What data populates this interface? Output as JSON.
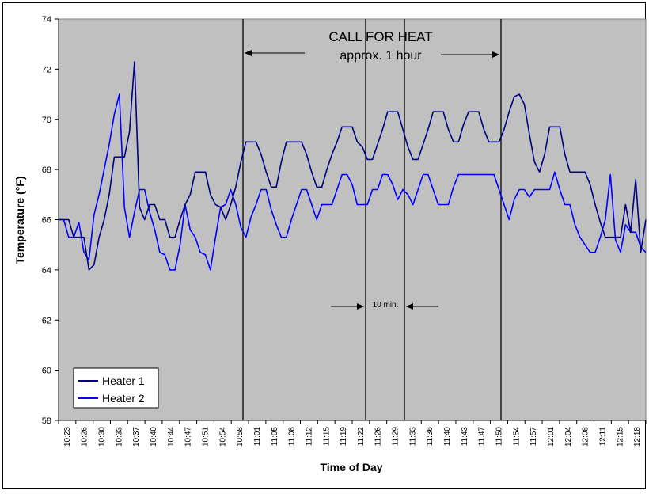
{
  "chart_data": {
    "type": "line",
    "xlabel": "Time of Day",
    "ylabel": "Temperature (°F)",
    "ylim": [
      58,
      74
    ],
    "yticks": [
      58,
      60,
      62,
      64,
      66,
      68,
      70,
      72,
      74
    ],
    "grid": false,
    "legend_position": "bottom-left",
    "x_labels": [
      "10:23",
      "10:26",
      "10:30",
      "10:33",
      "10:37",
      "10:40",
      "10:44",
      "10:47",
      "10:51",
      "10:54",
      "10:58",
      "11:01",
      "11:05",
      "11:08",
      "11:12",
      "11:15",
      "11:19",
      "11:22",
      "11:26",
      "11:29",
      "11:33",
      "11:36",
      "11:40",
      "11:43",
      "11:47",
      "11:50",
      "11:54",
      "11:57",
      "12:01",
      "12:04",
      "12:08",
      "12:11",
      "12:15",
      "12:18"
    ],
    "x_range_min": [
      0,
      116
    ],
    "colors": {
      "background": "#c0c0c0",
      "heater1": "#000080",
      "heater2": "#0000ff"
    },
    "series": [
      {
        "name": "Heater 1",
        "color": "#000080",
        "x": [
          0,
          1,
          2,
          3,
          4,
          5,
          6,
          7,
          8,
          9,
          10,
          11,
          12,
          13,
          14,
          15,
          16,
          17,
          18,
          19,
          20,
          21,
          22,
          23,
          24,
          25,
          26,
          27,
          28,
          29,
          30,
          31,
          32,
          33,
          34,
          35,
          36,
          37,
          38,
          39,
          40,
          41,
          42,
          43,
          44,
          45,
          46,
          47,
          48,
          49,
          50,
          51,
          52,
          53,
          54,
          55,
          56,
          57,
          58,
          59,
          60,
          61,
          62,
          63,
          64,
          65,
          66,
          67,
          68,
          69,
          70,
          71,
          72,
          73,
          74,
          75,
          76,
          77,
          78,
          79,
          80,
          81,
          82,
          83,
          84,
          85,
          86,
          87,
          88,
          89,
          90,
          91,
          92,
          93,
          94,
          95,
          96,
          97,
          98,
          99,
          100,
          101,
          102,
          103,
          104,
          105,
          106,
          107,
          108,
          109,
          110,
          111,
          112,
          113,
          114,
          115,
          116
        ],
        "values": [
          66.0,
          66.0,
          66.0,
          65.3,
          65.3,
          65.3,
          64.0,
          64.2,
          65.3,
          66.0,
          67.0,
          68.5,
          68.5,
          68.5,
          69.5,
          72.3,
          66.5,
          66.0,
          66.6,
          66.6,
          66.0,
          66.0,
          65.3,
          65.3,
          66.0,
          66.6,
          67.0,
          67.9,
          67.9,
          67.9,
          67.0,
          66.6,
          66.5,
          66.0,
          66.6,
          67.3,
          68.3,
          69.1,
          69.1,
          69.1,
          68.6,
          67.9,
          67.3,
          67.3,
          68.3,
          69.1,
          69.1,
          69.1,
          69.1,
          68.6,
          67.9,
          67.3,
          67.3,
          68.0,
          68.6,
          69.1,
          69.7,
          69.7,
          69.7,
          69.1,
          68.9,
          68.4,
          68.4,
          69.0,
          69.6,
          70.3,
          70.3,
          70.3,
          69.6,
          68.9,
          68.4,
          68.4,
          69.0,
          69.6,
          70.3,
          70.3,
          70.3,
          69.6,
          69.1,
          69.1,
          69.8,
          70.3,
          70.3,
          70.3,
          69.6,
          69.1,
          69.1,
          69.1,
          69.6,
          70.3,
          70.9,
          71.0,
          70.6,
          69.4,
          68.3,
          67.9,
          68.6,
          69.7,
          69.7,
          69.7,
          68.6,
          67.9,
          67.9,
          67.9,
          67.9,
          67.4,
          66.6,
          65.9,
          65.3,
          65.3,
          65.3,
          65.3,
          66.6,
          65.5,
          67.6,
          64.7,
          66.0
        ]
      },
      {
        "name": "Heater 2",
        "color": "#0000ff",
        "x": [
          0,
          1,
          2,
          3,
          4,
          5,
          6,
          7,
          8,
          9,
          10,
          11,
          12,
          13,
          14,
          15,
          16,
          17,
          18,
          19,
          20,
          21,
          22,
          23,
          24,
          25,
          26,
          27,
          28,
          29,
          30,
          31,
          32,
          33,
          34,
          35,
          36,
          37,
          38,
          39,
          40,
          41,
          42,
          43,
          44,
          45,
          46,
          47,
          48,
          49,
          50,
          51,
          52,
          53,
          54,
          55,
          56,
          57,
          58,
          59,
          60,
          61,
          62,
          63,
          64,
          65,
          66,
          67,
          68,
          69,
          70,
          71,
          72,
          73,
          74,
          75,
          76,
          77,
          78,
          79,
          80,
          81,
          82,
          83,
          84,
          85,
          86,
          87,
          88,
          89,
          90,
          91,
          92,
          93,
          94,
          95,
          96,
          97,
          98,
          99,
          100,
          101,
          102,
          103,
          104,
          105,
          106,
          107,
          108,
          109,
          110,
          111,
          112,
          113,
          114,
          115,
          116
        ],
        "values": [
          66.0,
          66.0,
          65.3,
          65.3,
          65.9,
          64.7,
          64.4,
          66.2,
          67.0,
          68.0,
          69.0,
          70.2,
          71.0,
          66.5,
          65.3,
          66.3,
          67.2,
          67.2,
          66.3,
          65.6,
          64.7,
          64.6,
          64.0,
          64.0,
          65.0,
          66.6,
          65.6,
          65.3,
          64.7,
          64.6,
          64.0,
          65.3,
          66.5,
          66.6,
          67.2,
          66.6,
          65.7,
          65.3,
          66.1,
          66.6,
          67.2,
          67.2,
          66.4,
          65.8,
          65.3,
          65.3,
          66.0,
          66.6,
          67.2,
          67.2,
          66.6,
          66.0,
          66.6,
          66.6,
          66.6,
          67.2,
          67.8,
          67.8,
          67.4,
          66.6,
          66.6,
          66.6,
          67.2,
          67.2,
          67.8,
          67.8,
          67.4,
          66.8,
          67.2,
          67.0,
          66.6,
          67.2,
          67.8,
          67.8,
          67.2,
          66.6,
          66.6,
          66.6,
          67.3,
          67.8,
          67.8,
          67.8,
          67.8,
          67.8,
          67.8,
          67.8,
          67.8,
          67.2,
          66.6,
          66.0,
          66.8,
          67.2,
          67.2,
          66.9,
          67.2,
          67.2,
          67.2,
          67.2,
          67.9,
          67.2,
          66.6,
          66.6,
          65.8,
          65.3,
          65.0,
          64.7,
          64.7,
          65.3,
          66.0,
          67.8,
          65.2,
          64.7,
          65.8,
          65.5,
          65.5,
          64.9,
          64.7
        ]
      }
    ],
    "annotations": {
      "call_title": "CALL FOR HEAT",
      "call_sub": "approx. 1 hour",
      "interval_label": "10 min."
    }
  }
}
